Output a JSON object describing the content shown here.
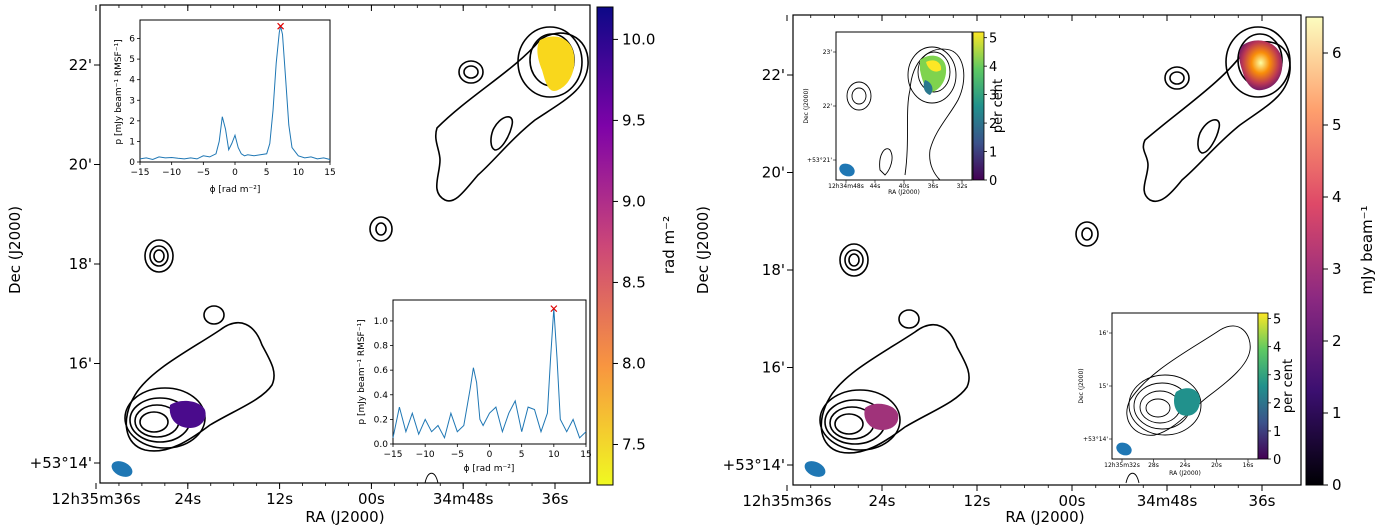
{
  "chart_data": [
    {
      "type": "image",
      "panel": "left",
      "xlabel": "RA (J2000)",
      "ylabel": "Dec (J2000)",
      "x_ticks": [
        "12h35m36s",
        "24s",
        "12s",
        "00s",
        "34m48s",
        "36s"
      ],
      "y_ticks": [
        "+53°14'",
        "16'",
        "18'",
        "20'",
        "22'"
      ],
      "colorbar": {
        "label": "rad m⁻²",
        "ticks": [
          "7.5",
          "8.0",
          "8.5",
          "9.0",
          "9.5",
          "10.0"
        ],
        "range": [
          7.25,
          10.2
        ],
        "colormap": "plasma",
        "colors": [
          "#0d0887",
          "#7e03a8",
          "#cc4778",
          "#f89540",
          "#f0f921"
        ]
      },
      "insets": [
        {
          "type": "line",
          "xlabel": "ϕ [rad m⁻²]",
          "ylabel": "p [mJy beam⁻¹ RMSF⁻¹]",
          "x_ticks": [
            "−15",
            "−10",
            "−5",
            "0",
            "5",
            "10",
            "15"
          ],
          "y_ticks": [
            "0",
            "1",
            "2",
            "3",
            "4",
            "5",
            "6"
          ],
          "xlim": [
            -15,
            15
          ],
          "ylim": [
            0,
            6.9
          ],
          "line_color": "#1f77b4",
          "peak": {
            "x": 7.2,
            "y": 6.6,
            "marker": "x",
            "color": "#e00000"
          },
          "x": [
            -15,
            -14,
            -13,
            -12,
            -11,
            -10,
            -9,
            -8,
            -7,
            -6,
            -5,
            -4,
            -3,
            -2.5,
            -2,
            -1.5,
            -1,
            -0.5,
            0,
            0.5,
            1,
            1.5,
            2,
            3,
            4,
            5,
            5.5,
            6,
            6.5,
            7,
            7.2,
            7.5,
            8,
            8.5,
            9,
            10,
            11,
            12,
            13,
            14,
            15
          ],
          "y": [
            0.15,
            0.2,
            0.12,
            0.25,
            0.2,
            0.22,
            0.18,
            0.15,
            0.2,
            0.15,
            0.3,
            0.25,
            0.4,
            1.0,
            2.2,
            1.6,
            0.6,
            0.9,
            1.3,
            0.7,
            0.4,
            0.3,
            0.35,
            0.3,
            0.35,
            0.4,
            0.9,
            2.5,
            4.8,
            6.3,
            6.6,
            6.2,
            4.0,
            1.8,
            0.7,
            0.3,
            0.2,
            0.25,
            0.15,
            0.2,
            0.12
          ]
        },
        {
          "type": "line",
          "xlabel": "ϕ [rad m⁻²]",
          "ylabel": "p [mJy beam⁻¹ RMSF⁻¹]",
          "x_ticks": [
            "−15",
            "−10",
            "−5",
            "0",
            "5",
            "10",
            "15"
          ],
          "y_ticks": [
            "0.0",
            "0.2",
            "0.4",
            "0.6",
            "0.8",
            "1.0"
          ],
          "xlim": [
            -15,
            15
          ],
          "ylim": [
            0,
            1.17
          ],
          "line_color": "#1f77b4",
          "peak": {
            "x": 10,
            "y": 1.1,
            "marker": "x",
            "color": "#e00000"
          },
          "x": [
            -15,
            -14,
            -13,
            -12,
            -11,
            -10,
            -9,
            -8,
            -7,
            -6,
            -5,
            -4,
            -3,
            -2.5,
            -2,
            -1.5,
            -1,
            0,
            1,
            2,
            3,
            4,
            5,
            6,
            7,
            8,
            9,
            9.5,
            10,
            10.5,
            11,
            12,
            13,
            14,
            15
          ],
          "y": [
            0.05,
            0.3,
            0.1,
            0.25,
            0.08,
            0.2,
            0.1,
            0.15,
            0.05,
            0.25,
            0.1,
            0.15,
            0.45,
            0.62,
            0.5,
            0.2,
            0.15,
            0.25,
            0.3,
            0.1,
            0.25,
            0.35,
            0.1,
            0.3,
            0.28,
            0.1,
            0.25,
            0.7,
            1.1,
            0.7,
            0.2,
            0.1,
            0.2,
            0.05,
            0.1
          ]
        }
      ]
    },
    {
      "type": "image",
      "panel": "right",
      "xlabel": "RA (J2000)",
      "ylabel": "Dec (J2000)",
      "x_ticks": [
        "12h35m36s",
        "24s",
        "12s",
        "00s",
        "34m48s",
        "36s"
      ],
      "y_ticks": [
        "+53°14'",
        "16'",
        "18'",
        "20'",
        "22'"
      ],
      "colorbar": {
        "label": "mJy beam⁻¹",
        "ticks": [
          "0",
          "1",
          "2",
          "3",
          "4",
          "5",
          "6"
        ],
        "range": [
          0,
          6.5
        ],
        "colormap": "inferno",
        "colors": [
          "#000004",
          "#56106e",
          "#bb3754",
          "#f98e09",
          "#fcffa4"
        ]
      },
      "insets": [
        {
          "type": "image",
          "xlabel": "RA (J2000)",
          "ylabel": "Dec (J2000)",
          "x_ticks": [
            "12h34m48s",
            "44s",
            "40s",
            "36s",
            "32s"
          ],
          "y_ticks": [
            "+53°21'",
            "22'",
            "23'"
          ],
          "colorbar": {
            "label": "per cent",
            "ticks": [
              "0",
              "1",
              "2",
              "3",
              "4",
              "5"
            ],
            "range": [
              0,
              5.2
            ],
            "colormap": "viridis",
            "colors": [
              "#440154",
              "#3b528b",
              "#21918c",
              "#5ec962",
              "#fde725"
            ]
          }
        },
        {
          "type": "image",
          "xlabel": "RA (J2000)",
          "ylabel": "Dec (J2000)",
          "x_ticks": [
            "12h35m32s",
            "28s",
            "24s",
            "20s",
            "16s"
          ],
          "y_ticks": [
            "+53°14'",
            "15'",
            "16'"
          ],
          "colorbar": {
            "label": "per cent",
            "ticks": [
              "0",
              "1",
              "2",
              "3",
              "4",
              "5"
            ],
            "range": [
              0,
              5.2
            ],
            "colormap": "viridis",
            "colors": [
              "#440154",
              "#3b528b",
              "#21918c",
              "#5ec962",
              "#fde725"
            ]
          }
        }
      ]
    }
  ]
}
